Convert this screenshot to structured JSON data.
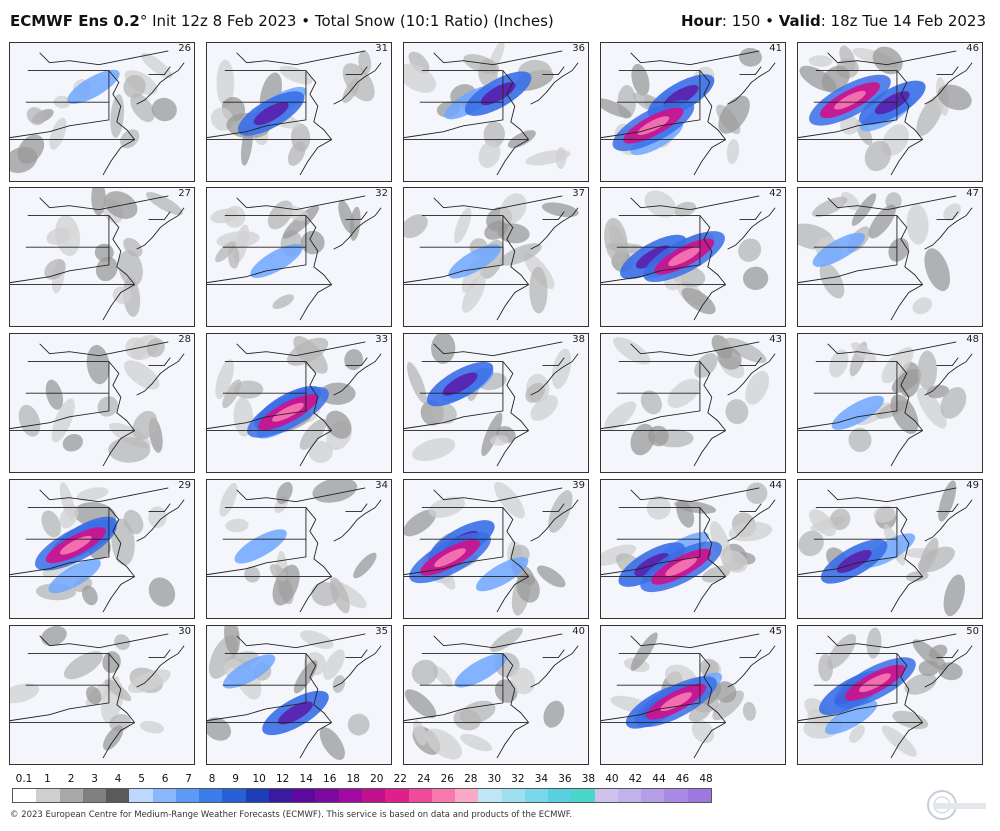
{
  "header": {
    "model": "ECMWF Ens 0.2",
    "degree": "°",
    "init": "Init 12z 8 Feb 2023",
    "bullet": "•",
    "product": "Total Snow (10:1 Ratio) (Inches)",
    "hour_label": "Hour",
    "hour_value": ": 150",
    "valid_label": "Valid",
    "valid_value": ": 18z Tue 14 Feb 2023"
  },
  "panels": [
    {
      "member": "26",
      "intensity": 1
    },
    {
      "member": "31",
      "intensity": 2
    },
    {
      "member": "36",
      "intensity": 2
    },
    {
      "member": "41",
      "intensity": 3
    },
    {
      "member": "46",
      "intensity": 3
    },
    {
      "member": "27",
      "intensity": 0
    },
    {
      "member": "32",
      "intensity": 1
    },
    {
      "member": "37",
      "intensity": 1
    },
    {
      "member": "42",
      "intensity": 3
    },
    {
      "member": "47",
      "intensity": 1
    },
    {
      "member": "28",
      "intensity": 0
    },
    {
      "member": "33",
      "intensity": 3
    },
    {
      "member": "38",
      "intensity": 2
    },
    {
      "member": "43",
      "intensity": 0
    },
    {
      "member": "48",
      "intensity": 1
    },
    {
      "member": "29",
      "intensity": 3
    },
    {
      "member": "34",
      "intensity": 1
    },
    {
      "member": "39",
      "intensity": 3
    },
    {
      "member": "44",
      "intensity": 3
    },
    {
      "member": "49",
      "intensity": 2
    },
    {
      "member": "30",
      "intensity": 0
    },
    {
      "member": "35",
      "intensity": 2
    },
    {
      "member": "40",
      "intensity": 1
    },
    {
      "member": "45",
      "intensity": 3
    },
    {
      "member": "50",
      "intensity": 3
    }
  ],
  "colorbar": {
    "ticks": [
      "0.1",
      "1",
      "2",
      "3",
      "4",
      "5",
      "6",
      "7",
      "8",
      "9",
      "10",
      "12",
      "14",
      "16",
      "18",
      "20",
      "22",
      "24",
      "26",
      "28",
      "30",
      "32",
      "34",
      "36",
      "38",
      "40",
      "42",
      "44",
      "46",
      "48"
    ],
    "colors": [
      "#ffffff",
      "#cfcfcf",
      "#a8a8a8",
      "#808080",
      "#5a5a5a",
      "#bcd8ff",
      "#8ab8ff",
      "#5c9af5",
      "#3a7ce8",
      "#2860d8",
      "#1c3fb8",
      "#3a1aa0",
      "#5c0a9c",
      "#7c0a9e",
      "#a00aa0",
      "#c0108c",
      "#e0208a",
      "#f04a9a",
      "#f878b0",
      "#fca8c8",
      "#bfe6f4",
      "#9ee0f0",
      "#7ad8ec",
      "#5acfe0",
      "#4ad6c8",
      "#cfc3ee",
      "#c2b2ec",
      "#b59ee8",
      "#a98ae4",
      "#9c78e0"
    ]
  },
  "footer": "© 2023 European Centre for Medium-Range Weather Forecasts (ECMWF). This service is based on data and products of the ECMWF."
}
